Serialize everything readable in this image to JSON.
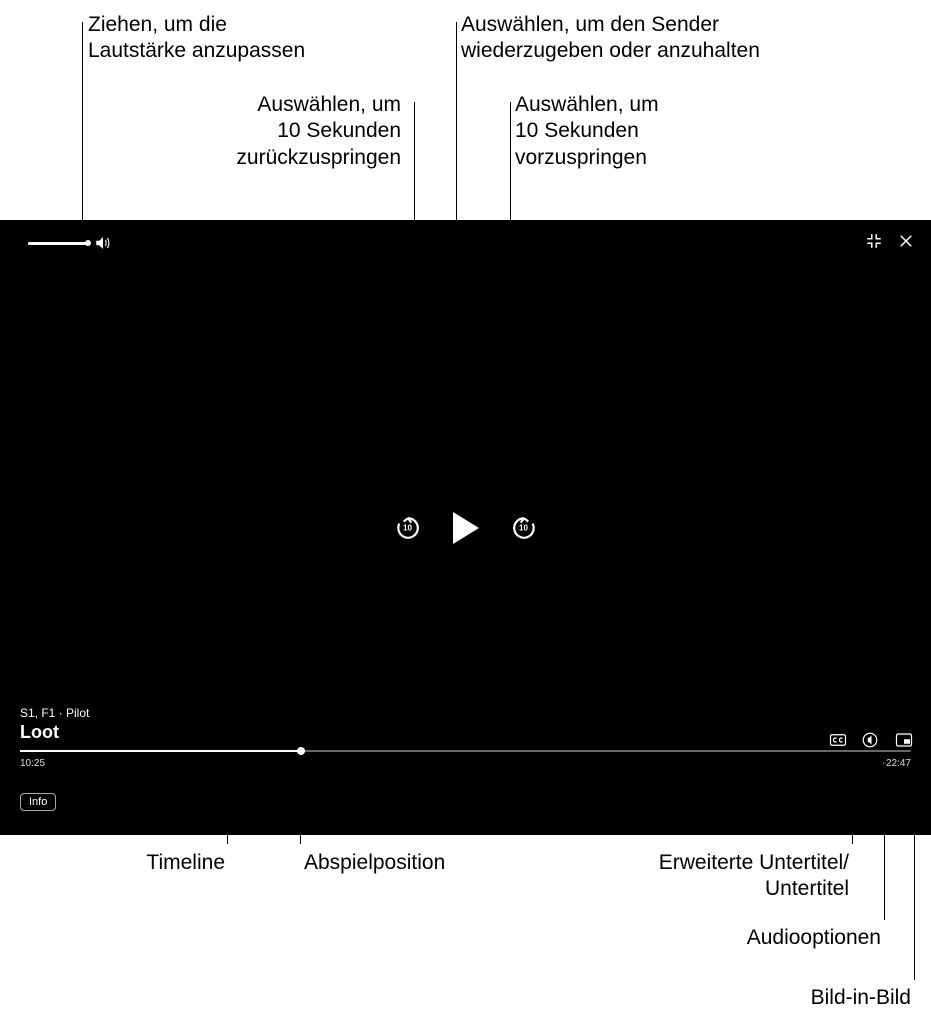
{
  "callouts": {
    "volume": "Ziehen, um die\nLautstärke anzupassen",
    "back10": "Auswählen, um\n10 Sekunden\nzurückzuspringen",
    "play_pause": "Auswählen, um den Sender\nwiederzugeben oder anzuhalten",
    "fwd10": "Auswählen, um\n10 Sekunden\nvorzuspringen",
    "timeline": "Timeline",
    "playhead": "Abspielposition",
    "subtitles": "Erweiterte Untertitel/\nUntertitel",
    "audio_opts": "Audiooptionen",
    "pip": "Bild-in-Bild"
  },
  "player": {
    "bg": "#000000",
    "fg": "#ffffff",
    "subtitle": "S1, F1 · Pilot",
    "title": "Loot",
    "elapsed": "10:25",
    "remaining": "-22:47",
    "info_label": "Info",
    "progress_pct": 31.5,
    "volume_pct": 100,
    "skip_label": "10"
  },
  "icons": {
    "cc": "cc-icon",
    "audio": "audio-options-icon",
    "pip": "pip-icon",
    "fullscreen": "exit-fullscreen-icon",
    "close": "close-icon",
    "speaker": "speaker-icon"
  }
}
